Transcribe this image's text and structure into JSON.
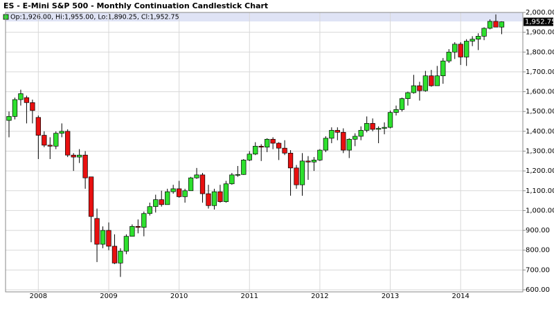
{
  "chart_data": {
    "type": "candlestick",
    "title": "ES - E-Mini S&P 500 - Monthly Continuation Candlestick Chart",
    "legend_label": "Op:1,926.00, Hi:1,955.00, Lo:1,890.25, Cl:1,952.75",
    "last_price_label": "1,952.75",
    "up_color": "#2ee02e",
    "down_color": "#e81010",
    "grid": true,
    "categories": [
      null,
      null,
      null,
      null,
      null,
      "2008",
      null,
      null,
      null,
      null,
      null,
      null,
      null,
      null,
      null,
      null,
      null,
      "2009",
      null,
      null,
      null,
      null,
      null,
      null,
      null,
      null,
      null,
      null,
      null,
      "2010",
      null,
      null,
      null,
      null,
      null,
      null,
      null,
      null,
      null,
      null,
      null,
      "2011",
      null,
      null,
      null,
      null,
      null,
      null,
      null,
      null,
      null,
      null,
      null,
      "2012",
      null,
      null,
      null,
      null,
      null,
      null,
      null,
      null,
      null,
      null,
      null,
      "2013",
      null,
      null,
      null,
      null,
      null,
      null,
      null,
      null,
      null,
      null,
      null,
      "2014",
      null,
      null,
      null,
      null,
      null,
      null,
      null
    ],
    "open": [
      1455,
      1475,
      1560,
      1570,
      1545,
      1470,
      1380,
      1330,
      1325,
      1390,
      1400,
      1280,
      1270,
      1280,
      1170,
      960,
      830,
      900,
      820,
      735,
      795,
      870,
      920,
      915,
      985,
      1020,
      1055,
      1030,
      1095,
      1110,
      1070,
      1100,
      1165,
      1180,
      1085,
      1025,
      1095,
      1045,
      1135,
      1178,
      1182,
      1255,
      1285,
      1325,
      1320,
      1360,
      1340,
      1315,
      1290,
      1215,
      1130,
      1250,
      1245,
      1255,
      1305,
      1365,
      1405,
      1395,
      1305,
      1360,
      1375,
      1405,
      1440,
      1410,
      1415,
      1420,
      1495,
      1510,
      1565,
      1595,
      1630,
      1605,
      1680,
      1630,
      1680,
      1755,
      1800,
      1840,
      1775,
      1855,
      1865,
      1880,
      1920,
      1955,
      1926
    ],
    "high": [
      1500,
      1570,
      1610,
      1580,
      1560,
      1480,
      1400,
      1370,
      1400,
      1440,
      1410,
      1290,
      1310,
      1300,
      1170,
      1010,
      920,
      940,
      880,
      810,
      880,
      930,
      955,
      995,
      1040,
      1080,
      1100,
      1110,
      1130,
      1150,
      1110,
      1170,
      1215,
      1190,
      1130,
      1110,
      1130,
      1150,
      1190,
      1225,
      1260,
      1300,
      1345,
      1335,
      1365,
      1370,
      1345,
      1355,
      1305,
      1230,
      1290,
      1275,
      1270,
      1310,
      1375,
      1420,
      1420,
      1415,
      1365,
      1390,
      1425,
      1475,
      1465,
      1425,
      1445,
      1505,
      1530,
      1570,
      1600,
      1685,
      1650,
      1705,
      1710,
      1730,
      1770,
      1815,
      1850,
      1850,
      1865,
      1880,
      1895,
      1925,
      1965,
      1990,
      1955
    ],
    "low": [
      1370,
      1460,
      1530,
      1440,
      1440,
      1260,
      1320,
      1260,
      1310,
      1370,
      1270,
      1200,
      1240,
      1110,
      840,
      740,
      810,
      800,
      730,
      665,
      780,
      870,
      885,
      870,
      975,
      990,
      1020,
      1030,
      1085,
      1065,
      1040,
      1100,
      1160,
      1040,
      1010,
      1005,
      1040,
      1040,
      1130,
      1170,
      1180,
      1250,
      1280,
      1250,
      1295,
      1310,
      1255,
      1280,
      1075,
      1110,
      1075,
      1155,
      1200,
      1250,
      1295,
      1340,
      1355,
      1290,
      1265,
      1325,
      1355,
      1395,
      1400,
      1340,
      1385,
      1415,
      1480,
      1500,
      1530,
      1590,
      1555,
      1600,
      1625,
      1630,
      1640,
      1745,
      1765,
      1735,
      1730,
      1830,
      1810,
      1860,
      1915,
      1925,
      1890.25
    ],
    "close": [
      1475,
      1560,
      1590,
      1545,
      1505,
      1380,
      1330,
      1325,
      1390,
      1400,
      1280,
      1270,
      1280,
      1165,
      970,
      830,
      900,
      820,
      735,
      795,
      870,
      920,
      915,
      985,
      1020,
      1055,
      1030,
      1095,
      1110,
      1070,
      1100,
      1165,
      1180,
      1085,
      1025,
      1095,
      1045,
      1135,
      1180,
      1182,
      1255,
      1285,
      1325,
      1320,
      1360,
      1340,
      1315,
      1290,
      1215,
      1130,
      1250,
      1245,
      1255,
      1305,
      1365,
      1405,
      1395,
      1305,
      1360,
      1375,
      1405,
      1440,
      1410,
      1415,
      1420,
      1495,
      1510,
      1565,
      1595,
      1630,
      1605,
      1680,
      1630,
      1680,
      1755,
      1800,
      1840,
      1775,
      1855,
      1865,
      1880,
      1920,
      1955,
      1926,
      1952.75
    ],
    "ylim": [
      600,
      2000
    ],
    "yticks": [
      {
        "value": 600,
        "label": "600.00"
      },
      {
        "value": 700,
        "label": "700.00"
      },
      {
        "value": 800,
        "label": "800.00"
      },
      {
        "value": 900,
        "label": "900.00"
      },
      {
        "value": 1000,
        "label": "1,000.00"
      },
      {
        "value": 1100,
        "label": "1,100.00"
      },
      {
        "value": 1200,
        "label": "1,200.00"
      },
      {
        "value": 1300,
        "label": "1,300.00"
      },
      {
        "value": 1400,
        "label": "1,400.00"
      },
      {
        "value": 1500,
        "label": "1,500.00"
      },
      {
        "value": 1600,
        "label": "1,600.00"
      },
      {
        "value": 1700,
        "label": "1,700.00"
      },
      {
        "value": 1800,
        "label": "1,800.00"
      },
      {
        "value": 1900,
        "label": "1,900.00"
      },
      {
        "value": 2000,
        "label": "2,000.00"
      }
    ]
  }
}
